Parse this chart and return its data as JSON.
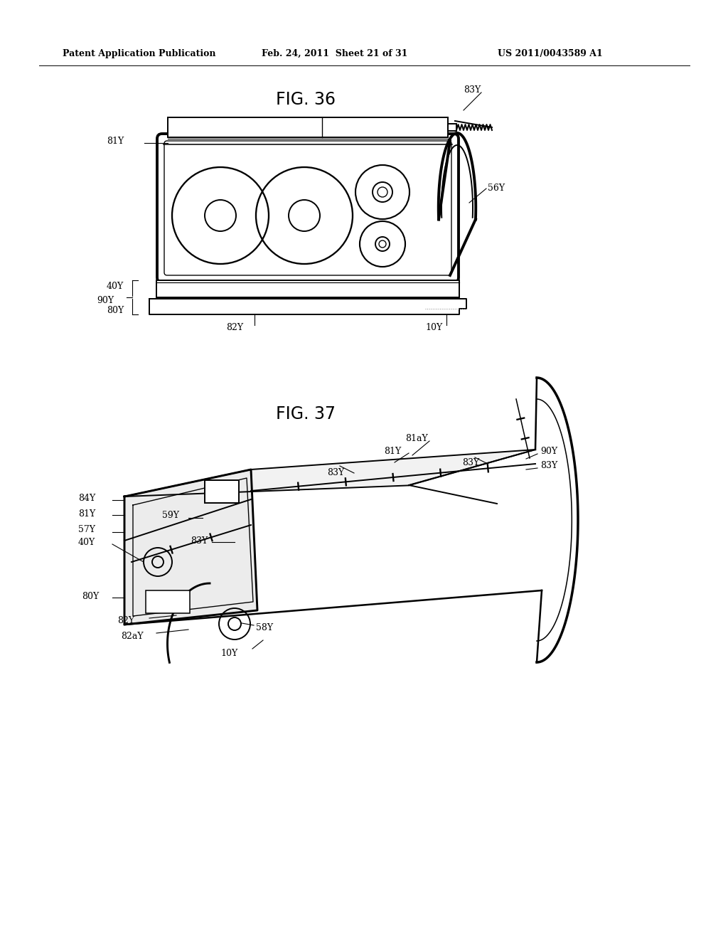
{
  "bg_color": "#ffffff",
  "header_left": "Patent Application Publication",
  "header_mid": "Feb. 24, 2011  Sheet 21 of 31",
  "header_right": "US 2011/0043589 A1",
  "fig36_title": "FIG. 36",
  "fig37_title": "FIG. 37",
  "lc": "#000000",
  "lw": 1.4,
  "fs_label": 9.0,
  "fs_title": 17
}
